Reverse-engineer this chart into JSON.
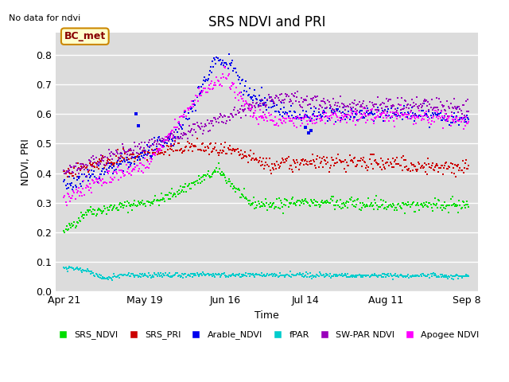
{
  "title": "SRS NDVI and PRI",
  "no_data_text": "No data for ndvi",
  "ylabel": "NDVI, PRI",
  "xlabel": "Time",
  "plot_bg_color": "#dcdcdc",
  "ylim": [
    0.0,
    0.875
  ],
  "yticks": [
    0.0,
    0.1,
    0.2,
    0.3,
    0.4,
    0.5,
    0.6,
    0.7,
    0.8
  ],
  "xtick_labels": [
    "Apr 21",
    "May 19",
    "Jun 16",
    "Jul 14",
    "Aug 11",
    "Sep 8"
  ],
  "xtick_days": [
    111,
    139,
    167,
    195,
    223,
    251
  ],
  "xlim": [
    108,
    255
  ],
  "legend_entries": [
    {
      "label": "SRS_NDVI",
      "color": "#00dd00"
    },
    {
      "label": "SRS_PRI",
      "color": "#cc0000"
    },
    {
      "label": "Arable_NDVI",
      "color": "#0000ee"
    },
    {
      "label": "fPAR",
      "color": "#00cccc"
    },
    {
      "label": "SW-PAR NDVI",
      "color": "#9900bb"
    },
    {
      "label": "Apogee NDVI",
      "color": "#ff00ff"
    }
  ],
  "bc_met_box": {
    "text": "BC_met",
    "facecolor": "#ffffcc",
    "edgecolor": "#cc8800",
    "textcolor": "#880000"
  },
  "seed": 42
}
